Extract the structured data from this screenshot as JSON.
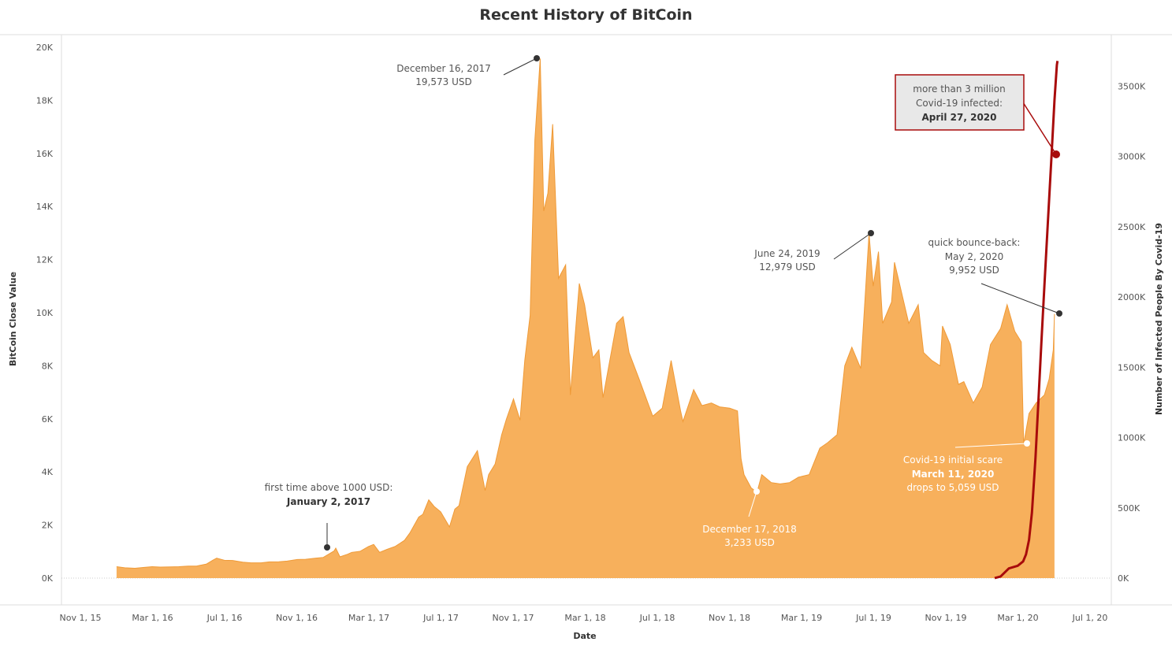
{
  "chart_data": {
    "type": "area",
    "title": "Recent History of BitCoin",
    "xlabel": "Date",
    "ylabel": "BitCoin Close Value",
    "y2label": "Number of Infected People By Covid-19",
    "x_range": [
      "2015-11-01",
      "2020-07-01"
    ],
    "ylim": [
      0,
      20000
    ],
    "y2lim": [
      0,
      3800000
    ],
    "grid": false,
    "x_ticks": [
      "Nov 1, 15",
      "Mar 1, 16",
      "Jul 1, 16",
      "Nov 1, 16",
      "Mar 1, 17",
      "Jul 1, 17",
      "Nov 1, 17",
      "Mar 1, 18",
      "Jul 1, 18",
      "Nov 1, 18",
      "Mar 1, 19",
      "Jul 1, 19",
      "Nov 1, 19",
      "Mar 1, 20",
      "Jul 1, 20"
    ],
    "y_ticks": [
      "0K",
      "2K",
      "4K",
      "6K",
      "8K",
      "10K",
      "12K",
      "14K",
      "16K",
      "18K",
      "20K"
    ],
    "y2_ticks": [
      "0K",
      "500K",
      "1000K",
      "1500K",
      "2000K",
      "2500K",
      "3000K",
      "3500K"
    ],
    "colors": {
      "bitcoin_fill": "#f7b05c",
      "bitcoin_line": "#ef9a37",
      "covid_line": "#a80b0b",
      "annotation_dot": "#333333"
    },
    "series": [
      {
        "name": "BitCoin Close Value",
        "axis": "left",
        "points": [
          [
            "2016-01-01",
            430
          ],
          [
            "2016-01-15",
            390
          ],
          [
            "2016-02-01",
            370
          ],
          [
            "2016-02-15",
            400
          ],
          [
            "2016-03-01",
            430
          ],
          [
            "2016-03-15",
            415
          ],
          [
            "2016-04-01",
            420
          ],
          [
            "2016-04-15",
            430
          ],
          [
            "2016-05-01",
            450
          ],
          [
            "2016-05-15",
            455
          ],
          [
            "2016-06-01",
            530
          ],
          [
            "2016-06-12",
            680
          ],
          [
            "2016-06-18",
            750
          ],
          [
            "2016-07-01",
            670
          ],
          [
            "2016-07-15",
            665
          ],
          [
            "2016-08-01",
            600
          ],
          [
            "2016-08-15",
            575
          ],
          [
            "2016-09-01",
            575
          ],
          [
            "2016-09-15",
            610
          ],
          [
            "2016-10-01",
            615
          ],
          [
            "2016-10-15",
            640
          ],
          [
            "2016-11-01",
            700
          ],
          [
            "2016-11-15",
            710
          ],
          [
            "2016-12-01",
            750
          ],
          [
            "2016-12-15",
            780
          ],
          [
            "2017-01-02",
            1020
          ],
          [
            "2017-01-05",
            1130
          ],
          [
            "2017-01-12",
            800
          ],
          [
            "2017-01-25",
            900
          ],
          [
            "2017-02-01",
            970
          ],
          [
            "2017-02-15",
            1010
          ],
          [
            "2017-03-01",
            1190
          ],
          [
            "2017-03-10",
            1270
          ],
          [
            "2017-03-20",
            970
          ],
          [
            "2017-04-01",
            1080
          ],
          [
            "2017-04-15",
            1190
          ],
          [
            "2017-05-01",
            1420
          ],
          [
            "2017-05-10",
            1700
          ],
          [
            "2017-05-25",
            2300
          ],
          [
            "2017-06-01",
            2400
          ],
          [
            "2017-06-11",
            2950
          ],
          [
            "2017-06-20",
            2700
          ],
          [
            "2017-07-01",
            2500
          ],
          [
            "2017-07-16",
            1930
          ],
          [
            "2017-07-25",
            2600
          ],
          [
            "2017-08-01",
            2730
          ],
          [
            "2017-08-15",
            4200
          ],
          [
            "2017-09-01",
            4800
          ],
          [
            "2017-09-14",
            3300
          ],
          [
            "2017-09-20",
            3900
          ],
          [
            "2017-10-01",
            4300
          ],
          [
            "2017-10-12",
            5400
          ],
          [
            "2017-10-20",
            5990
          ],
          [
            "2017-11-01",
            6750
          ],
          [
            "2017-11-12",
            5950
          ],
          [
            "2017-11-20",
            8200
          ],
          [
            "2017-11-29",
            9900
          ],
          [
            "2017-12-07",
            16500
          ],
          [
            "2017-12-16",
            19573
          ],
          [
            "2017-12-22",
            13830
          ],
          [
            "2017-12-29",
            14500
          ],
          [
            "2018-01-06",
            17100
          ],
          [
            "2018-01-16",
            11300
          ],
          [
            "2018-01-28",
            11800
          ],
          [
            "2018-02-05",
            6900
          ],
          [
            "2018-02-20",
            11100
          ],
          [
            "2018-03-01",
            10300
          ],
          [
            "2018-03-15",
            8300
          ],
          [
            "2018-03-25",
            8600
          ],
          [
            "2018-04-01",
            6800
          ],
          [
            "2018-04-24",
            9600
          ],
          [
            "2018-05-05",
            9850
          ],
          [
            "2018-05-15",
            8500
          ],
          [
            "2018-06-01",
            7500
          ],
          [
            "2018-06-24",
            6100
          ],
          [
            "2018-07-10",
            6400
          ],
          [
            "2018-07-25",
            8200
          ],
          [
            "2018-08-10",
            6300
          ],
          [
            "2018-08-14",
            5900
          ],
          [
            "2018-09-01",
            7100
          ],
          [
            "2018-09-15",
            6500
          ],
          [
            "2018-10-01",
            6600
          ],
          [
            "2018-10-15",
            6450
          ],
          [
            "2018-11-01",
            6400
          ],
          [
            "2018-11-14",
            6300
          ],
          [
            "2018-11-20",
            4500
          ],
          [
            "2018-11-25",
            3900
          ],
          [
            "2018-12-07",
            3400
          ],
          [
            "2018-12-17",
            3233
          ],
          [
            "2018-12-25",
            3900
          ],
          [
            "2019-01-10",
            3600
          ],
          [
            "2019-01-25",
            3550
          ],
          [
            "2019-02-10",
            3600
          ],
          [
            "2019-02-25",
            3800
          ],
          [
            "2019-03-15",
            3900
          ],
          [
            "2019-04-02",
            4900
          ],
          [
            "2019-04-15",
            5100
          ],
          [
            "2019-05-01",
            5400
          ],
          [
            "2019-05-14",
            8000
          ],
          [
            "2019-05-26",
            8700
          ],
          [
            "2019-06-10",
            7900
          ],
          [
            "2019-06-24",
            12979
          ],
          [
            "2019-07-01",
            11000
          ],
          [
            "2019-07-10",
            12300
          ],
          [
            "2019-07-17",
            9600
          ],
          [
            "2019-08-01",
            10400
          ],
          [
            "2019-08-06",
            11900
          ],
          [
            "2019-08-30",
            9600
          ],
          [
            "2019-09-15",
            10300
          ],
          [
            "2019-09-24",
            8500
          ],
          [
            "2019-10-08",
            8200
          ],
          [
            "2019-10-22",
            8000
          ],
          [
            "2019-10-26",
            9500
          ],
          [
            "2019-11-08",
            8800
          ],
          [
            "2019-11-22",
            7300
          ],
          [
            "2019-12-01",
            7400
          ],
          [
            "2019-12-17",
            6600
          ],
          [
            "2020-01-01",
            7200
          ],
          [
            "2020-01-15",
            8800
          ],
          [
            "2020-02-01",
            9400
          ],
          [
            "2020-02-12",
            10300
          ],
          [
            "2020-02-25",
            9300
          ],
          [
            "2020-03-07",
            8900
          ],
          [
            "2020-03-11",
            5059
          ],
          [
            "2020-03-20",
            6200
          ],
          [
            "2020-04-01",
            6600
          ],
          [
            "2020-04-15",
            6900
          ],
          [
            "2020-04-23",
            7500
          ],
          [
            "2020-04-30",
            8600
          ],
          [
            "2020-05-02",
            9952
          ]
        ]
      },
      {
        "name": "Number of Infected People By Covid-19",
        "axis": "right",
        "points": [
          [
            "2020-01-22",
            555
          ],
          [
            "2020-02-01",
            12000
          ],
          [
            "2020-02-15",
            69000
          ],
          [
            "2020-03-01",
            88000
          ],
          [
            "2020-03-10",
            119000
          ],
          [
            "2020-03-15",
            169000
          ],
          [
            "2020-03-20",
            272000
          ],
          [
            "2020-03-25",
            467000
          ],
          [
            "2020-03-31",
            857000
          ],
          [
            "2020-04-05",
            1270000
          ],
          [
            "2020-04-10",
            1690000
          ],
          [
            "2020-04-15",
            2080000
          ],
          [
            "2020-04-20",
            2470000
          ],
          [
            "2020-04-27",
            3000000
          ],
          [
            "2020-05-02",
            3400000
          ],
          [
            "2020-05-06",
            3650000
          ],
          [
            "2020-05-07",
            3680000
          ]
        ]
      }
    ],
    "annotations": {
      "peak_2017": {
        "date": "December 16, 2017",
        "value_text": "19,573 USD"
      },
      "first_1000": {
        "lead": "first time above 1000 USD:",
        "date": "January 2, 2017"
      },
      "low_2018": {
        "date": "December 17, 2018",
        "value_text": "3,233 USD"
      },
      "peak_2019": {
        "date": "June 24, 2019",
        "value_text": "12,979 USD"
      },
      "covid_scare": {
        "lead": "Covid-19 initial scare",
        "date": "March 11, 2020",
        "value_text": "drops to 5,059 USD"
      },
      "bounce": {
        "lead": "quick bounce-back:",
        "date": "May 2, 2020",
        "value_text": "9,952 USD"
      },
      "covid_3m": {
        "line1": "more than 3 million",
        "line2": "Covid-19 infected:",
        "date": "April 27, 2020"
      }
    }
  }
}
